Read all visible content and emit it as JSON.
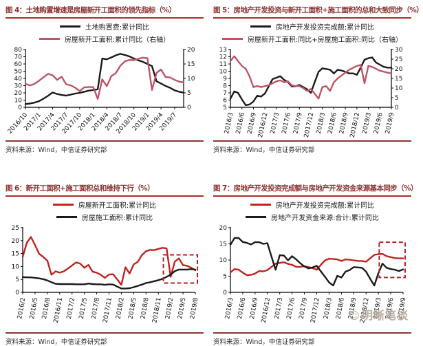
{
  "source_label": "资料来源：Wind，中信证券研究部",
  "watermark": {
    "text": "明晰笔谈",
    "icon_glyph": "☺"
  },
  "colors": {
    "black_series": "#1a1a1a",
    "rose_series": "#bd5565",
    "red_series": "#c2221f",
    "title_red": "#8c3434",
    "underline_red": "#b02a2a",
    "dashed_box": "#b22222"
  },
  "chart_data": [
    {
      "id": "fig4",
      "type": "line",
      "title": "图 4：土地购置增速是房屋新开工面积的领先指标（%）",
      "source": "资料来源：Wind，中信证券研究部",
      "x_tick_labels": [
        "2016/10",
        "2017/1",
        "2017/4",
        "2017/7",
        "2017/10",
        "2018/1",
        "2018/4",
        "2018/7",
        "2018/10",
        "2019/1",
        "2019/4",
        "2019/7"
      ],
      "tick_every": 3,
      "axes": {
        "left": {
          "min": 0,
          "max": 80,
          "step": 10
        },
        "right": {
          "min": 0,
          "max": 20,
          "step": 5
        }
      },
      "legend": [
        {
          "label": "土地购置费:累计同比",
          "color_key": "black_series"
        },
        {
          "label": "房屋新开工面积:累计同比（右轴）",
          "color_key": "rose_series"
        }
      ],
      "series": [
        {
          "name": "土地购置费:累计同比",
          "color_key": "black_series",
          "axis": "left",
          "values": [
            4.5,
            5.2,
            6.5,
            8.5,
            12,
            16,
            20.5,
            18.5,
            17,
            16.2,
            17.5,
            19,
            20,
            21.5,
            23,
            24,
            25,
            67.5,
            66.5,
            69,
            72,
            74,
            72.5,
            70.5,
            67.5,
            65,
            63,
            60,
            57,
            36,
            33,
            29.5,
            27,
            23.5,
            21.5,
            20.3
          ]
        },
        {
          "name": "房屋新开工面积:累计同比（右轴）",
          "color_key": "rose_series",
          "axis": "right",
          "values": [
            8.1,
            7.6,
            8.1,
            9.2,
            10.4,
            11.6,
            11.1,
            9.5,
            10.6,
            8.0,
            7.6,
            6.8,
            5.6,
            6.9,
            7.0,
            7.0,
            2.9,
            9.7,
            7.3,
            10.8,
            11.8,
            14.4,
            15.9,
            16.4,
            16.3,
            16.8,
            17.2,
            17.0,
            6.0,
            11.9,
            13.1,
            10.5,
            10.3,
            9.5,
            8.9,
            8.6
          ]
        }
      ],
      "x_label_rotation": -48
    },
    {
      "id": "fig5",
      "type": "line",
      "title": "图 5：房地产开发投资与新开工面积+施工面积的总和大致同步（%）",
      "source": "资料来源：Wind，中信证券研究部",
      "x_tick_labels": [
        "2016/3",
        "2016/6",
        "2016/9",
        "2016/12",
        "2017/3",
        "2017/6",
        "2017/9",
        "2017/12",
        "2018/3",
        "2018/6",
        "2018/9",
        "2018/12",
        "2019/3",
        "2019/6",
        "2019/9"
      ],
      "tick_every": 3,
      "axes": {
        "left": {
          "min": 5,
          "max": 13,
          "step": 1
        },
        "right": {
          "min": 0,
          "max": 30,
          "step": 5
        }
      },
      "legend": [
        {
          "label": "房地产开发投资完成额:累计同比",
          "color_key": "black_series"
        },
        {
          "label": "房屋新开工面积:同比+房屋施工面积:同比（右轴）",
          "color_key": "rose_series"
        }
      ],
      "series": [
        {
          "name": "房地产开发投资完成额:累计同比",
          "color_key": "black_series",
          "axis": "left",
          "values": [
            6.2,
            7.2,
            7.0,
            6.1,
            5.3,
            5.4,
            5.8,
            6.6,
            6.5,
            6.9,
            7.9,
            8.9,
            9.1,
            9.3,
            8.8,
            8.5,
            7.9,
            7.9,
            8.1,
            7.8,
            7.5,
            7.0,
            8.5,
            9.9,
            10.4,
            10.3,
            10.2,
            9.7,
            10.2,
            10.1,
            9.9,
            9.7,
            9.7,
            9.5,
            10.5,
            11.6,
            11.8,
            11.9,
            11.2,
            10.9,
            10.6,
            10.5,
            10.5
          ]
        },
        {
          "name": "房屋新开工面积:同比+房屋施工面积:同比（右轴）",
          "color_key": "rose_series",
          "axis": "right",
          "values": [
            24,
            26.5,
            24,
            21.5,
            20,
            16,
            10.5,
            11,
            10.5,
            11,
            11.5,
            12.5,
            13.5,
            14,
            13,
            13.5,
            11.5,
            11,
            11,
            10,
            8.5,
            9.5,
            7,
            4.5,
            10.5,
            11,
            8.5,
            13,
            15,
            16.5,
            18,
            19.5,
            20.5,
            21.5,
            22,
            12.5,
            21.5,
            21,
            20,
            19,
            18.5,
            18,
            17.5
          ]
        }
      ],
      "x_label_rotation": -78
    },
    {
      "id": "fig6",
      "type": "line",
      "title": "图 6：新开工面积+施工面积总和维持下行（%）",
      "source": "资料来源：Wind，中信证券研究部",
      "x_tick_labels": [
        "2016/2",
        "2016/5",
        "2016/8",
        "2016/11",
        "2017/2",
        "2017/5",
        "2017/8",
        "2017/11",
        "2018/2",
        "2018/5",
        "2018/8",
        "2018/11",
        "2019/2",
        "2019/5",
        "2019/8"
      ],
      "tick_every": 3,
      "axes": {
        "left": {
          "min": 0,
          "max": 25,
          "step": 5
        }
      },
      "legend": [
        {
          "label": "房屋新开工面积:累计同比",
          "color_key": "red_series"
        },
        {
          "label": "房屋施工面积:累计同比",
          "color_key": "black_series"
        }
      ],
      "series": [
        {
          "name": "房屋新开工面积:累计同比",
          "color_key": "red_series",
          "axis": "left",
          "values": [
            13.7,
            19.2,
            21.4,
            18.3,
            14.9,
            13.7,
            12.2,
            6.8,
            8.1,
            7.6,
            8.1,
            9.2,
            10.4,
            11.6,
            11.1,
            9.5,
            10.6,
            8.0,
            7.6,
            6.8,
            5.6,
            6.9,
            7.0,
            5.0,
            2.9,
            9.7,
            7.3,
            10.8,
            11.8,
            14.4,
            15.9,
            16.4,
            16.3,
            16.8,
            17.2,
            17.0,
            6.0,
            11.9,
            13.1,
            10.5,
            10.3,
            9.5,
            8.5
          ]
        },
        {
          "name": "房屋施工面积:累计同比",
          "color_key": "black_series",
          "axis": "left",
          "values": [
            5.9,
            5.8,
            5.8,
            5.6,
            5.4,
            5.1,
            4.6,
            3.9,
            3.3,
            3.2,
            3.2,
            3.2,
            3.2,
            3.1,
            3.1,
            3.1,
            3.4,
            3.2,
            3.1,
            3.1,
            2.9,
            3.1,
            3.0,
            2.2,
            1.5,
            1.5,
            1.6,
            2.0,
            2.5,
            3.0,
            3.6,
            3.9,
            4.3,
            4.7,
            5.2,
            6.0,
            6.8,
            8.2,
            8.8,
            8.8,
            8.8,
            9.0,
            8.8
          ]
        }
      ],
      "highlight": {
        "x0_frac": 0.815,
        "x1_frac": 1.012,
        "y0": 3.6,
        "y1": 14.5
      },
      "x_label_rotation": -80
    },
    {
      "id": "fig7",
      "type": "line",
      "title": "图 7：房地产开发投资完成额与房地产开发资金来源基本同步（%）",
      "source": "资料来源：Wind，中信证券研究部",
      "x_tick_labels": [
        "2016/3",
        "2016/6",
        "2016/9",
        "2016/12",
        "2017/3",
        "2017/6",
        "2017/9",
        "2017/12",
        "2018/3",
        "2018/6",
        "2018/9",
        "2018/12",
        "2019/3",
        "2019/6",
        "2019/9"
      ],
      "tick_every": 3,
      "axes": {
        "left": {
          "min": 0,
          "max": 20,
          "step": 5
        }
      },
      "legend": [
        {
          "label": "房地产开发投资完成额:累计同比",
          "color_key": "red_series"
        },
        {
          "label": "房地产开发资金来源:合计:累计同比",
          "color_key": "black_series"
        }
      ],
      "series": [
        {
          "name": "房地产开发投资完成额:累计同比",
          "color_key": "red_series",
          "axis": "left",
          "values": [
            6.2,
            7.2,
            7.0,
            6.1,
            5.3,
            5.4,
            5.8,
            6.6,
            6.5,
            6.9,
            7.9,
            8.9,
            9.1,
            9.3,
            8.8,
            8.5,
            7.9,
            7.9,
            8.1,
            7.8,
            7.5,
            7.0,
            8.5,
            9.9,
            10.4,
            10.3,
            10.2,
            9.7,
            10.2,
            10.1,
            9.9,
            9.7,
            9.7,
            9.5,
            10.5,
            11.6,
            11.8,
            11.9,
            11.2,
            10.9,
            10.6,
            10.5,
            10.5
          ]
        },
        {
          "name": "房地产开发资金来源:合计:累计同比",
          "color_key": "black_series",
          "axis": "left",
          "values": [
            14.7,
            16.8,
            16.8,
            15.6,
            15.3,
            14.8,
            15.5,
            15.5,
            15.0,
            15.2,
            11.0,
            7.0,
            11.5,
            11.4,
            9.9,
            11.2,
            10.2,
            9.0,
            8.0,
            7.4,
            7.7,
            8.2,
            6.5,
            4.8,
            3.1,
            2.1,
            5.1,
            4.6,
            6.4,
            6.9,
            7.8,
            7.7,
            7.6,
            6.4,
            4.2,
            2.1,
            5.9,
            8.9,
            7.6,
            7.2,
            7.0,
            6.6,
            7.1
          ]
        }
      ],
      "highlight": {
        "x0_frac": 0.862,
        "x1_frac": 1.012,
        "y0": 4.6,
        "y1": 15.5
      },
      "x_label_rotation": -80
    }
  ]
}
